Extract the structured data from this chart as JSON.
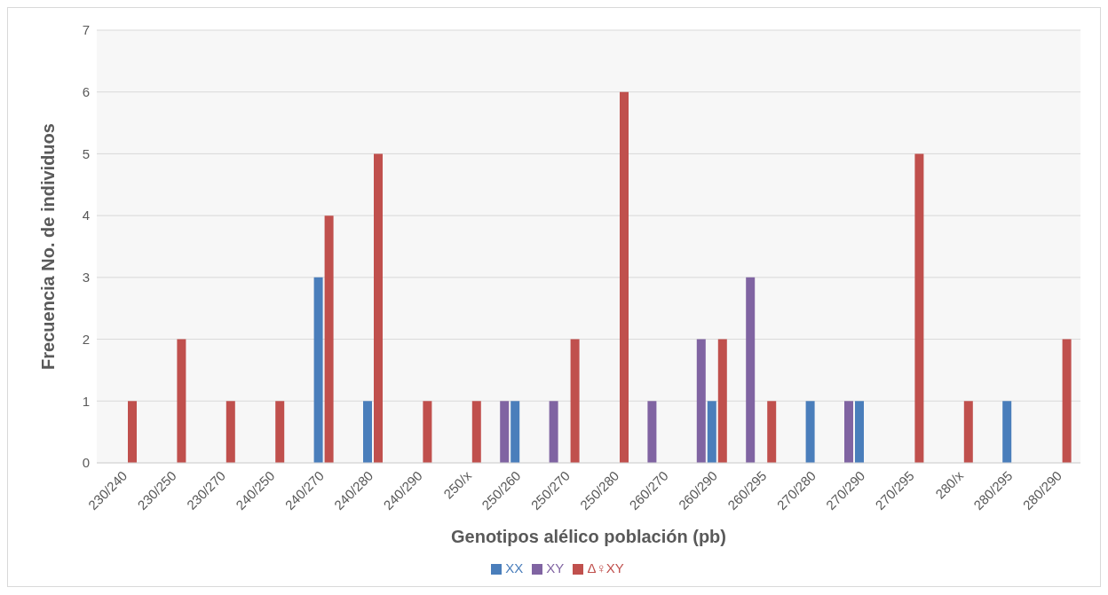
{
  "chart_data": {
    "type": "bar",
    "xlabel": "Genotipos alélico población (pb)",
    "ylabel": "Frecuencia No. de individuos",
    "categories": [
      "230/240",
      "230/250",
      "230/270",
      "240/250",
      "240/270",
      "240/280",
      "240/290",
      "250/x",
      "250/260",
      "250/270",
      "250/280",
      "260/270",
      "260/290",
      "260/295",
      "270/280",
      "270/290",
      "270/295",
      "280/x",
      "280/295",
      "280/290"
    ],
    "series": [
      {
        "name": "XY",
        "color": "#8064a2",
        "values": [
          0,
          0,
          0,
          0,
          0,
          0,
          0,
          0,
          1,
          1,
          0,
          1,
          2,
          3,
          0,
          1,
          0,
          0,
          0,
          0
        ]
      },
      {
        "name": "XX",
        "color": "#4a7ebb",
        "values": [
          0,
          0,
          0,
          0,
          3,
          1,
          0,
          0,
          1,
          0,
          0,
          0,
          1,
          0,
          1,
          1,
          0,
          0,
          1,
          0
        ]
      },
      {
        "name": "Δ♀XY",
        "color": "#c0504d",
        "values": [
          1,
          2,
          1,
          1,
          4,
          5,
          1,
          1,
          0,
          2,
          6,
          0,
          2,
          1,
          0,
          0,
          5,
          1,
          0,
          2
        ]
      }
    ],
    "ylim": [
      0,
      7
    ],
    "yticks": [
      0,
      1,
      2,
      3,
      4,
      5,
      6,
      7
    ],
    "grid": "y",
    "legend": "bottom"
  }
}
